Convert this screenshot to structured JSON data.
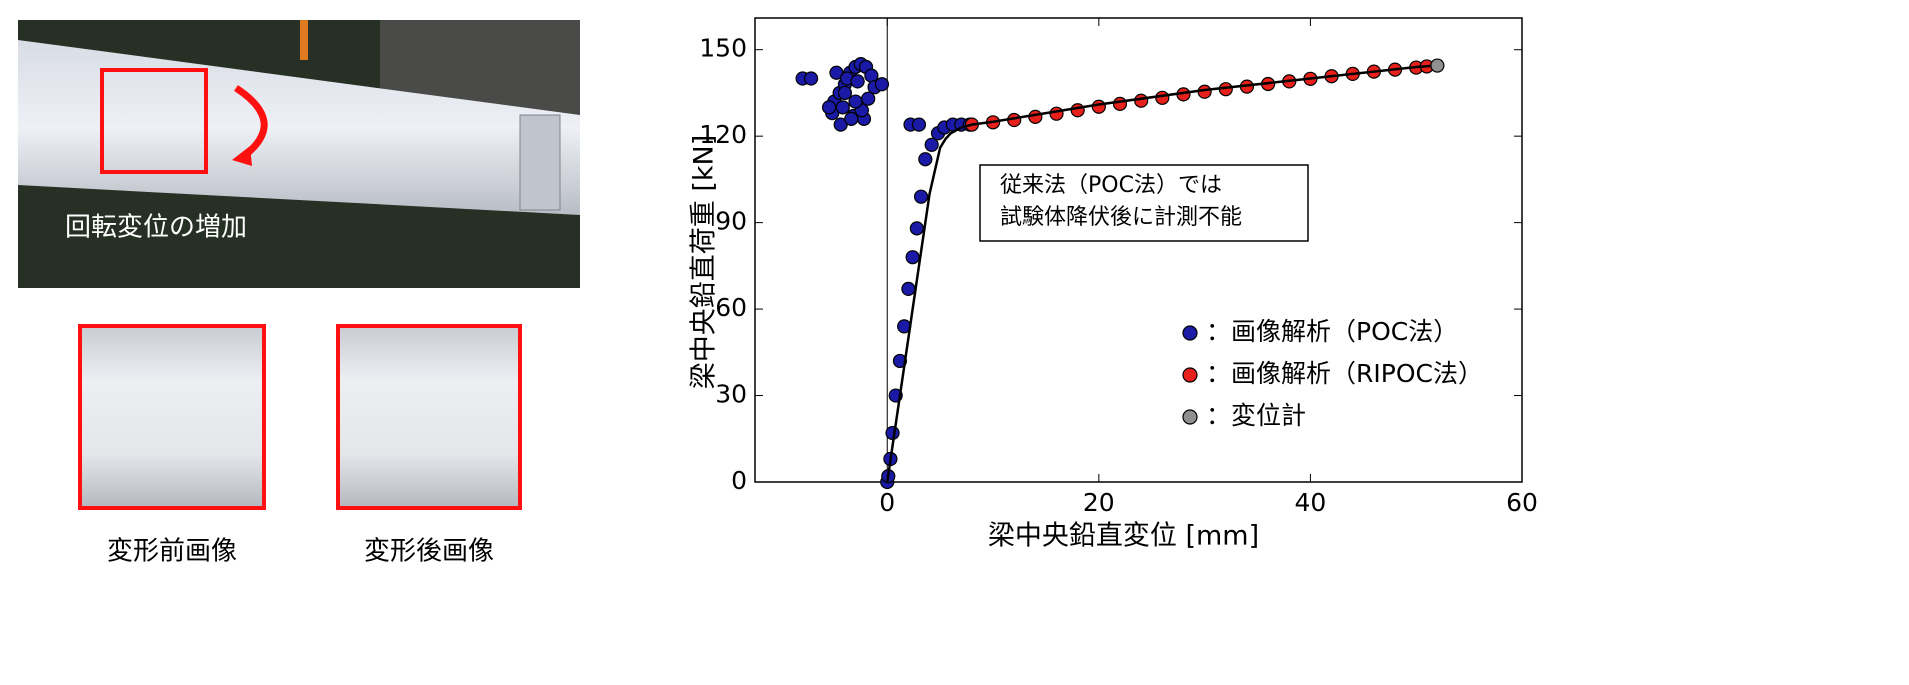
{
  "photo": {
    "caption": "回転変位の増加",
    "before": "変形前画像",
    "after": "変形後画像"
  },
  "chart_data": {
    "type": "scatter",
    "x_label": "梁中央鉛直変位 [mm]",
    "y_label": "梁中央鉛直荷重 [kN]",
    "annotation": [
      "従来法（POC法）では",
      "試験体降伏後に計測不能"
    ],
    "xlim": [
      -12.5,
      60
    ],
    "ylim": [
      0,
      161
    ],
    "xticks": [
      0,
      20,
      40,
      60
    ],
    "yticks": [
      0,
      30,
      60,
      90,
      120,
      150
    ],
    "legend": "lower right",
    "series": [
      {
        "name": "：画像解析（POC法）",
        "color": "#1a1aa6",
        "x": [
          0,
          0.1,
          0.3,
          0.5,
          0.8,
          1.2,
          1.6,
          2.0,
          2.4,
          2.8,
          3.2,
          3.6,
          4.2,
          4.8,
          5.4,
          6.2,
          7.0,
          7.8,
          2.2,
          3.0,
          -8,
          -7.2,
          -5,
          -4.5,
          -4,
          -3.5,
          -3,
          -2.5,
          -2,
          -1.5,
          -5.2,
          -4.2,
          -3.2,
          -2.2,
          -1.2,
          -4.8,
          -3.8,
          -2.8,
          -1.8,
          -4.4,
          -3.4,
          -2.4,
          -4,
          -3,
          -5.5,
          -0.5
        ],
        "values": [
          0,
          2,
          8,
          17,
          30,
          42,
          54,
          67,
          78,
          88,
          99,
          112,
          117,
          121,
          123,
          124,
          124,
          124,
          124,
          124,
          140,
          140,
          132,
          135,
          138,
          142,
          144,
          145,
          144,
          141,
          128,
          130,
          127,
          126,
          137,
          142,
          140,
          139,
          133,
          124,
          126,
          129,
          135,
          132,
          130,
          138
        ]
      },
      {
        "name": "：画像解析（RIPOC法）",
        "color": "#e8201c",
        "x": [
          8,
          10,
          12,
          14,
          16,
          18,
          20,
          22,
          24,
          26,
          28,
          30,
          32,
          34,
          36,
          38,
          40,
          42,
          44,
          46,
          48,
          50,
          51
        ],
        "values": [
          124,
          124.8,
          125.6,
          126.7,
          127.8,
          129,
          130.2,
          131.2,
          132.3,
          133.3,
          134.5,
          135.4,
          136.3,
          137.2,
          138.1,
          139,
          139.9,
          140.8,
          141.6,
          142.4,
          143.1,
          143.8,
          144.2
        ]
      },
      {
        "name": "：変位計",
        "color": "#909090",
        "line": true,
        "marker": "last",
        "x": [
          0,
          1,
          2,
          3,
          4,
          5,
          5.5,
          6,
          7,
          8,
          10,
          15,
          20,
          30,
          40,
          50,
          52
        ],
        "values": [
          0,
          25,
          50,
          75,
          100,
          116,
          119,
          121,
          123,
          124,
          125,
          128,
          131,
          136,
          140,
          144,
          144.5
        ]
      }
    ]
  }
}
